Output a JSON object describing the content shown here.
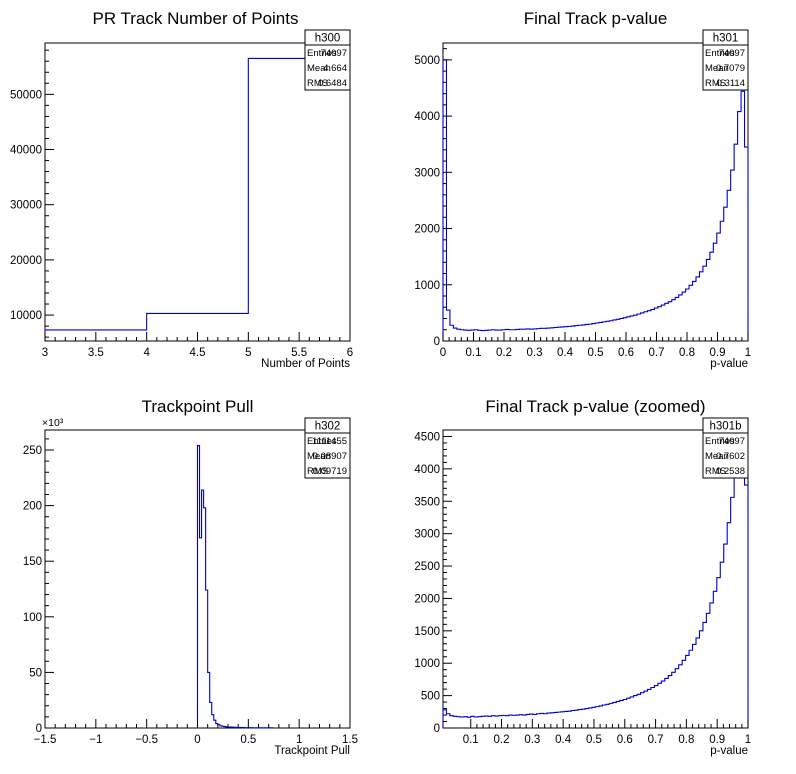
{
  "chart_data": [
    {
      "type": "histogram",
      "title": "PR Track Number of Points",
      "xlabel": "Number of Points",
      "ylabel": "",
      "xlim": [
        3,
        6
      ],
      "ylim": [
        5300,
        59300
      ],
      "x_ticks": [
        3,
        3.5,
        4,
        4.5,
        5,
        5.5,
        6
      ],
      "x_tick_labels": [
        "3",
        "3.5",
        "4",
        "4.5",
        "5",
        "5.5",
        "6"
      ],
      "y_ticks": [
        10000,
        20000,
        30000,
        40000,
        50000
      ],
      "y_tick_labels": [
        "10000",
        "20000",
        "30000",
        "40000",
        "50000"
      ],
      "y_multiplier": "",
      "grid": false,
      "bins": [
        [
          3,
          4,
          7300
        ],
        [
          4,
          5,
          10300
        ],
        [
          5,
          6,
          56500
        ]
      ],
      "stats": {
        "name": "h300",
        "entries": "74097",
        "mean": "4.664",
        "rms": "0.6484"
      },
      "line_color": "#0000cc"
    },
    {
      "type": "histogram",
      "title": "Final Track p-value",
      "xlabel": "p-value",
      "ylabel": "",
      "xlim": [
        0,
        1
      ],
      "ylim": [
        0,
        5300
      ],
      "x_ticks": [
        0,
        0.1,
        0.2,
        0.3,
        0.4,
        0.5,
        0.6,
        0.7,
        0.8,
        0.9,
        1
      ],
      "x_tick_labels": [
        "0",
        "0.1",
        "0.2",
        "0.3",
        "0.4",
        "0.5",
        "0.6",
        "0.7",
        "0.8",
        "0.9",
        "1"
      ],
      "y_ticks": [
        0,
        1000,
        2000,
        3000,
        4000,
        5000
      ],
      "y_tick_labels": [
        "0",
        "1000",
        "2000",
        "3000",
        "4000",
        "5000"
      ],
      "y_multiplier": "",
      "grid": false,
      "bin_range": [
        0,
        1
      ],
      "bin_values": [
        5000,
        550,
        280,
        230,
        210,
        200,
        195,
        190,
        195,
        200,
        190,
        185,
        190,
        195,
        200,
        195,
        195,
        200,
        205,
        200,
        200,
        205,
        210,
        210,
        215,
        210,
        215,
        220,
        225,
        225,
        230,
        235,
        240,
        245,
        250,
        255,
        260,
        265,
        275,
        280,
        285,
        295,
        300,
        310,
        320,
        330,
        340,
        350,
        360,
        375,
        385,
        400,
        415,
        430,
        445,
        460,
        480,
        500,
        520,
        540,
        560,
        585,
        610,
        640,
        670,
        700,
        735,
        775,
        820,
        870,
        925,
        990,
        1060,
        1140,
        1230,
        1330,
        1450,
        1580,
        1740,
        1920,
        2130,
        2380,
        2680,
        3040,
        3500,
        4080,
        4440,
        3450
      ],
      "stats": {
        "name": "h301",
        "entries": "74097",
        "mean": "0.7079",
        "rms": "0.3114"
      },
      "line_color": "#0000cc"
    },
    {
      "type": "histogram",
      "title": "Trackpoint Pull",
      "xlabel": "Trackpoint Pull",
      "ylabel": "",
      "xlim": [
        -1.5,
        1.5
      ],
      "ylim": [
        0,
        268
      ],
      "x_ticks": [
        -1.5,
        -1,
        -0.5,
        0,
        0.5,
        1,
        1.5
      ],
      "x_tick_labels": [
        "−1.5",
        "−1",
        "−0.5",
        "0",
        "0.5",
        "1",
        "1.5"
      ],
      "y_ticks": [
        0,
        50,
        100,
        150,
        200,
        250
      ],
      "y_tick_labels": [
        "0",
        "50",
        "100",
        "150",
        "200",
        "250"
      ],
      "y_multiplier": "×10³",
      "grid": false,
      "bin_range": [
        0,
        0.74
      ],
      "bin_values": [
        254,
        171,
        214,
        198,
        124,
        50,
        23,
        12,
        7,
        4,
        3,
        2,
        1.6,
        1.3,
        1,
        0.9,
        0.8,
        0.7,
        0.6,
        0.5,
        0.5,
        0.4,
        0.4,
        0.3,
        0.3,
        0.3,
        0.3,
        0.2,
        0.2,
        0.2,
        0.2,
        0.2,
        0.2,
        0.2,
        0.2,
        0.2,
        0.2
      ],
      "stats": {
        "name": "h302",
        "entries": "1111455",
        "mean": "0.08907",
        "rms": "0.09719"
      },
      "line_color": "#0000cc"
    },
    {
      "type": "histogram",
      "title": "Final Track p-value (zoomed)",
      "xlabel": "p-value",
      "ylabel": "",
      "xlim": [
        0.01,
        1
      ],
      "ylim": [
        0,
        4600
      ],
      "x_ticks": [
        0.1,
        0.2,
        0.3,
        0.4,
        0.5,
        0.6,
        0.7,
        0.8,
        0.9,
        1
      ],
      "x_tick_labels": [
        "0.1",
        "0.2",
        "0.3",
        "0.4",
        "0.5",
        "0.6",
        "0.7",
        "0.8",
        "0.9",
        "1"
      ],
      "y_ticks": [
        0,
        500,
        1000,
        1500,
        2000,
        2500,
        3000,
        3500,
        4000,
        4500
      ],
      "y_tick_labels": [
        "0",
        "500",
        "1000",
        "1500",
        "2000",
        "2500",
        "3000",
        "3500",
        "4000",
        "4500"
      ],
      "y_multiplier": "",
      "grid": false,
      "bin_range": [
        0.01,
        1
      ],
      "bin_values": [
        280,
        220,
        190,
        180,
        175,
        170,
        175,
        165,
        180,
        170,
        175,
        180,
        185,
        180,
        190,
        185,
        190,
        195,
        190,
        200,
        195,
        200,
        205,
        200,
        210,
        215,
        210,
        220,
        225,
        220,
        230,
        235,
        240,
        245,
        250,
        255,
        260,
        270,
        275,
        285,
        290,
        300,
        310,
        320,
        330,
        340,
        355,
        365,
        380,
        395,
        410,
        425,
        440,
        460,
        480,
        500,
        520,
        545,
        570,
        595,
        625,
        655,
        690,
        725,
        765,
        810,
        860,
        915,
        975,
        1045,
        1120,
        1200,
        1290,
        1390,
        1500,
        1630,
        1770,
        1930,
        2110,
        2320,
        2560,
        2840,
        3170,
        3560,
        3900,
        4250,
        4550,
        3750
      ],
      "stats": {
        "name": "h301b",
        "entries": "74097",
        "mean": "0.7602",
        "rms": "0.2538"
      },
      "line_color": "#0000cc"
    }
  ]
}
